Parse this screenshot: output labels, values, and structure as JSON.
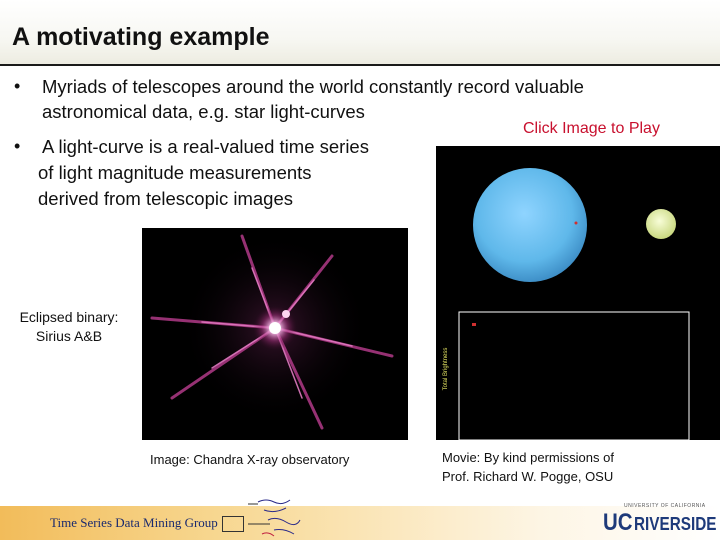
{
  "slide": {
    "title": "A motivating example",
    "bullets": [
      {
        "line1": "Myriads of telescopes around the world constantly record valuable",
        "line2": "astronomical data, e.g. star light-curves"
      },
      {
        "line1": "A light-curve is a real-valued time series",
        "line2": "of light magnitude measurements",
        "line3": "derived from telescopic images"
      }
    ],
    "bullet_glyph": "•",
    "click_label": "Click Image to Play",
    "left_image": {
      "label_line1": "Eclipsed binary:",
      "label_line2": "Sirius A&B",
      "caption": "Image: Chandra X-ray observatory"
    },
    "movie": {
      "axis_label": "Total Brightness",
      "caption_line1": "Movie: By kind permissions of",
      "caption_line2": "Prof. Richard W. Pogge, OSU"
    },
    "footer": {
      "group_name": "Time Series Data Mining Group",
      "ucr_small": "UNIVERSITY OF CALIFORNIA",
      "ucr_uc": "UC",
      "ucr_riverside": "RIVERSIDE"
    }
  },
  "colors": {
    "click_label": "#c8102e",
    "movie_large_star": "#5fb8ea",
    "movie_small_star": "#e6f0a0",
    "footer_text": "#1a2a6e",
    "ucr_blue": "#1e3a7a",
    "chandra_glow": "#c2408a"
  }
}
